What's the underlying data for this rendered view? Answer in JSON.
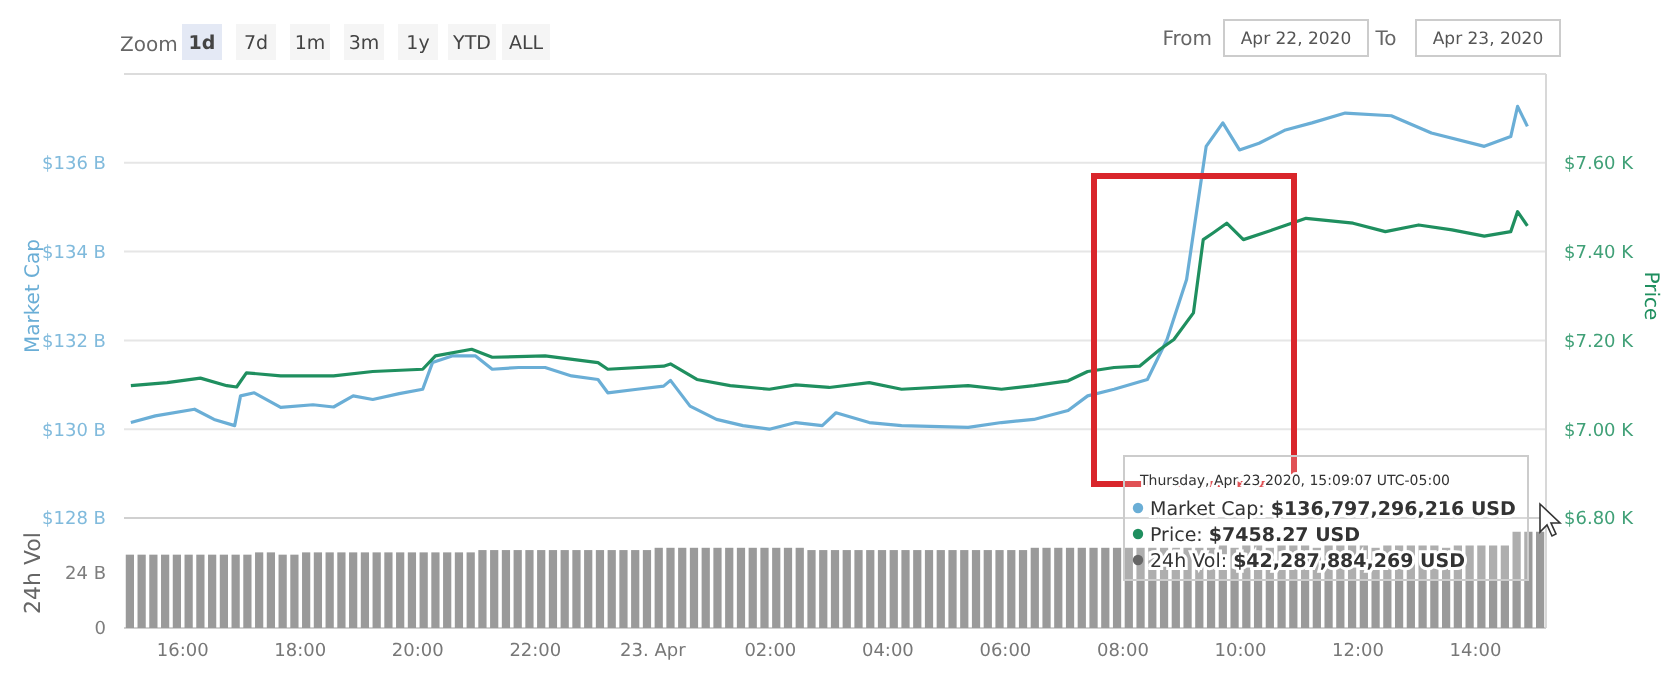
{
  "chart_data": [
    {
      "type": "line",
      "ylabel": "Market Cap",
      "y2label": "Price",
      "tick_labels": "y",
      "xlim": [
        "2020-04-22T15:00",
        "2020-04-23T15:12"
      ],
      "ylim": [
        128,
        138
      ],
      "yticks": [
        {
          "value": 128,
          "label": "$128 B"
        },
        {
          "value": 130,
          "label": "$130 B"
        },
        {
          "value": 132,
          "label": "$132 B"
        },
        {
          "value": 134,
          "label": "$134 B"
        },
        {
          "value": 136,
          "label": "$136 B"
        }
      ],
      "y2lim": [
        6.8,
        7.8
      ],
      "y2ticks": [
        {
          "value": 6.8,
          "label": "$6.80 K"
        },
        {
          "value": 7.0,
          "label": "$7.00 K"
        },
        {
          "value": 7.2,
          "label": "$7.20 K"
        },
        {
          "value": 7.4,
          "label": "$7.40 K"
        },
        {
          "value": 7.6,
          "label": "$7.60 K"
        }
      ],
      "grid": "y",
      "series": [
        {
          "color": "#6aaed6",
          "x": [
            "2020-04-22T15:07",
            "2020-04-22T15:32",
            "2020-04-22T16:12",
            "2020-04-22T16:32",
            "2020-04-22T16:53",
            "2020-04-22T16:59",
            "2020-04-22T17:13",
            "2020-04-22T17:40",
            "2020-04-22T18:13",
            "2020-04-22T18:34",
            "2020-04-22T18:54",
            "2020-04-22T19:14",
            "2020-04-22T19:41",
            "2020-04-22T20:05",
            "2020-04-22T20:15",
            "2020-04-22T20:35",
            "2020-04-22T20:59",
            "2020-04-22T21:16",
            "2020-04-22T21:43",
            "2020-04-22T22:10",
            "2020-04-22T22:37",
            "2020-04-22T23:04",
            "2020-04-22T23:14",
            "2020-04-22T23:44",
            "2020-04-23T00:11",
            "2020-04-23T00:18",
            "2020-04-23T00:38",
            "2020-04-23T01:05",
            "2020-04-23T01:32",
            "2020-04-23T01:59",
            "2020-04-23T02:26",
            "2020-04-23T02:53",
            "2020-04-23T03:07",
            "2020-04-23T03:41",
            "2020-04-23T04:14",
            "2020-04-23T05:22",
            "2020-04-23T05:56",
            "2020-04-23T06:29",
            "2020-04-23T07:04",
            "2020-04-23T07:24",
            "2020-04-23T07:51",
            "2020-04-23T08:25",
            "2020-04-23T08:45",
            "2020-04-23T09:05",
            "2020-04-23T09:19",
            "2020-04-23T09:25",
            "2020-04-23T09:42",
            "2020-04-23T09:59",
            "2020-04-23T10:19",
            "2020-04-23T10:46",
            "2020-04-23T11:13",
            "2020-04-23T11:47",
            "2020-04-23T12:34",
            "2020-04-23T13:15",
            "2020-04-23T14:09",
            "2020-04-23T14:36",
            "2020-04-23T14:43",
            "2020-04-23T14:53"
          ],
          "values": [
            130.15,
            130.3,
            130.45,
            130.22,
            130.08,
            130.75,
            130.82,
            130.49,
            130.55,
            130.5,
            130.75,
            130.67,
            130.8,
            130.9,
            131.5,
            131.65,
            131.65,
            131.35,
            131.39,
            131.39,
            131.2,
            131.12,
            130.82,
            130.9,
            130.97,
            131.1,
            130.52,
            130.22,
            130.08,
            130.0,
            130.15,
            130.08,
            130.37,
            130.15,
            130.08,
            130.04,
            130.15,
            130.22,
            130.42,
            130.75,
            130.9,
            131.12,
            132.02,
            133.37,
            135.47,
            136.37,
            136.9,
            136.29,
            136.44,
            136.74,
            136.9,
            137.12,
            137.06,
            136.67,
            136.37,
            136.59,
            137.27,
            136.82
          ]
        },
        {
          "axis": "y2",
          "color": "#1f8f5f",
          "x": [
            "2020-04-22T15:07",
            "2020-04-22T15:44",
            "2020-04-22T16:18",
            "2020-04-22T16:45",
            "2020-04-22T16:55",
            "2020-04-22T17:05",
            "2020-04-22T17:40",
            "2020-04-22T18:34",
            "2020-04-22T19:14",
            "2020-04-22T20:05",
            "2020-04-22T20:18",
            "2020-04-22T20:55",
            "2020-04-22T21:16",
            "2020-04-22T22:10",
            "2020-04-22T23:04",
            "2020-04-22T23:14",
            "2020-04-23T00:11",
            "2020-04-23T00:18",
            "2020-04-23T00:45",
            "2020-04-23T01:19",
            "2020-04-23T01:59",
            "2020-04-23T02:26",
            "2020-04-23T03:00",
            "2020-04-23T03:41",
            "2020-04-23T04:14",
            "2020-04-23T05:22",
            "2020-04-23T05:56",
            "2020-04-23T06:29",
            "2020-04-23T07:04",
            "2020-04-23T07:24",
            "2020-04-23T07:51",
            "2020-04-23T08:17",
            "2020-04-23T08:38",
            "2020-04-23T08:52",
            "2020-04-23T09:12",
            "2020-04-23T09:22",
            "2020-04-23T09:32",
            "2020-04-23T09:46",
            "2020-04-23T10:03",
            "2020-04-23T10:33",
            "2020-04-23T11:07",
            "2020-04-23T11:55",
            "2020-04-23T12:28",
            "2020-04-23T13:02",
            "2020-04-23T13:36",
            "2020-04-23T14:09",
            "2020-04-23T14:36",
            "2020-04-23T14:43",
            "2020-04-23T14:53"
          ],
          "values": [
            7.098,
            7.105,
            7.115,
            7.098,
            7.095,
            7.127,
            7.12,
            7.12,
            7.13,
            7.135,
            7.165,
            7.18,
            7.162,
            7.165,
            7.15,
            7.135,
            7.142,
            7.147,
            7.112,
            7.098,
            7.09,
            7.1,
            7.094,
            7.105,
            7.09,
            7.098,
            7.09,
            7.098,
            7.109,
            7.13,
            7.139,
            7.142,
            7.18,
            7.202,
            7.262,
            7.427,
            7.442,
            7.464,
            7.427,
            7.449,
            7.475,
            7.464,
            7.445,
            7.46,
            7.449,
            7.435,
            7.445,
            7.49,
            7.458
          ]
        }
      ],
      "annotations": [
        "Zoom",
        "1d",
        "7d",
        "1m",
        "3m",
        "1y",
        "YTD",
        "ALL",
        "From",
        "Apr 22, 2020",
        "To",
        "Apr 23, 2020",
        "Thursday, Apr 23 2020, 15:09:07 UTC-05:00",
        "Market Cap: $136,797,296,216 USD",
        "Price: $7458.27 USD",
        "24h Vol: $42,287,884,269 USD"
      ]
    },
    {
      "type": "bar",
      "ylabel": "24h Vol",
      "color": "#9a9a9a",
      "xlim": [
        "2020-04-22T15:00",
        "2020-04-23T15:12"
      ],
      "xticks": [
        {
          "value": "2020-04-22T16:00",
          "label": "16:00"
        },
        {
          "value": "2020-04-22T18:00",
          "label": "18:00"
        },
        {
          "value": "2020-04-22T20:00",
          "label": "20:00"
        },
        {
          "value": "2020-04-22T22:00",
          "label": "22:00"
        },
        {
          "value": "2020-04-23T00:00",
          "label": "23. Apr"
        },
        {
          "value": "2020-04-23T02:00",
          "label": "02:00"
        },
        {
          "value": "2020-04-23T04:00",
          "label": "04:00"
        },
        {
          "value": "2020-04-23T06:00",
          "label": "06:00"
        },
        {
          "value": "2020-04-23T08:00",
          "label": "08:00"
        },
        {
          "value": "2020-04-23T10:00",
          "label": "10:00"
        },
        {
          "value": "2020-04-23T12:00",
          "label": "12:00"
        },
        {
          "value": "2020-04-23T14:00",
          "label": "14:00"
        }
      ],
      "ylim": [
        0,
        48
      ],
      "yticks": [
        0,
        {
          "value": 24,
          "label": "24 B"
        }
      ],
      "x": [
        "2020-04-22T15:06",
        "2020-04-22T15:18",
        "2020-04-22T15:30",
        "2020-04-22T15:42",
        "2020-04-22T15:54",
        "2020-04-22T16:06",
        "2020-04-22T16:18",
        "2020-04-22T16:30",
        "2020-04-22T16:42",
        "2020-04-22T16:54",
        "2020-04-22T17:06",
        "2020-04-22T17:18",
        "2020-04-22T17:30",
        "2020-04-22T17:42",
        "2020-04-22T17:54",
        "2020-04-22T18:06",
        "2020-04-22T18:18",
        "2020-04-22T18:30",
        "2020-04-22T18:42",
        "2020-04-22T18:54",
        "2020-04-22T19:06",
        "2020-04-22T19:18",
        "2020-04-22T19:30",
        "2020-04-22T19:42",
        "2020-04-22T19:54",
        "2020-04-22T20:06",
        "2020-04-22T20:18",
        "2020-04-22T20:30",
        "2020-04-22T20:42",
        "2020-04-22T20:54",
        "2020-04-22T21:06",
        "2020-04-22T21:18",
        "2020-04-22T21:30",
        "2020-04-22T21:42",
        "2020-04-22T21:54",
        "2020-04-22T22:06",
        "2020-04-22T22:18",
        "2020-04-22T22:30",
        "2020-04-22T22:42",
        "2020-04-22T22:54",
        "2020-04-22T23:06",
        "2020-04-22T23:18",
        "2020-04-22T23:30",
        "2020-04-22T23:42",
        "2020-04-22T23:54",
        "2020-04-23T00:06",
        "2020-04-23T00:18",
        "2020-04-23T00:30",
        "2020-04-23T00:42",
        "2020-04-23T00:54",
        "2020-04-23T01:06",
        "2020-04-23T01:18",
        "2020-04-23T01:30",
        "2020-04-23T01:42",
        "2020-04-23T01:54",
        "2020-04-23T02:06",
        "2020-04-23T02:18",
        "2020-04-23T02:30",
        "2020-04-23T02:42",
        "2020-04-23T02:54",
        "2020-04-23T03:06",
        "2020-04-23T03:18",
        "2020-04-23T03:30",
        "2020-04-23T03:42",
        "2020-04-23T03:54",
        "2020-04-23T04:06",
        "2020-04-23T04:18",
        "2020-04-23T04:30",
        "2020-04-23T04:42",
        "2020-04-23T04:54",
        "2020-04-23T05:06",
        "2020-04-23T05:18",
        "2020-04-23T05:30",
        "2020-04-23T05:42",
        "2020-04-23T05:54",
        "2020-04-23T06:06",
        "2020-04-23T06:18",
        "2020-04-23T06:30",
        "2020-04-23T06:42",
        "2020-04-23T06:54",
        "2020-04-23T07:06",
        "2020-04-23T07:18",
        "2020-04-23T07:30",
        "2020-04-23T07:42",
        "2020-04-23T07:54",
        "2020-04-23T08:06",
        "2020-04-23T08:18",
        "2020-04-23T08:30",
        "2020-04-23T08:42",
        "2020-04-23T08:54",
        "2020-04-23T09:06",
        "2020-04-23T09:18",
        "2020-04-23T09:30",
        "2020-04-23T09:42",
        "2020-04-23T09:54",
        "2020-04-23T10:06",
        "2020-04-23T10:18",
        "2020-04-23T10:30",
        "2020-04-23T10:42",
        "2020-04-23T10:54",
        "2020-04-23T11:06",
        "2020-04-23T11:18",
        "2020-04-23T11:30",
        "2020-04-23T11:42",
        "2020-04-23T11:54",
        "2020-04-23T12:06",
        "2020-04-23T12:18",
        "2020-04-23T12:30",
        "2020-04-23T12:42",
        "2020-04-23T12:54",
        "2020-04-23T13:06",
        "2020-04-23T13:18",
        "2020-04-23T13:30",
        "2020-04-23T13:42",
        "2020-04-23T13:54",
        "2020-04-23T14:06",
        "2020-04-23T14:18",
        "2020-04-23T14:30",
        "2020-04-23T14:42",
        "2020-04-23T14:54",
        "2020-04-23T15:06"
      ],
      "values": [
        32,
        32,
        32,
        32,
        32,
        32,
        32,
        32,
        32,
        32,
        32,
        33,
        33,
        32,
        32,
        33,
        33,
        33,
        33,
        33,
        33,
        33,
        33,
        33,
        33,
        33,
        33,
        33,
        33,
        33,
        34,
        34,
        34,
        34,
        34,
        34,
        34,
        34,
        34,
        34,
        34,
        34,
        34,
        34,
        34,
        35,
        35,
        35,
        35,
        35,
        35,
        35,
        35,
        35,
        35,
        35,
        35,
        35,
        34,
        34,
        34,
        34,
        34,
        34,
        34,
        34,
        34,
        34,
        34,
        34,
        34,
        34,
        34,
        34,
        34,
        34,
        34,
        35,
        35,
        35,
        35,
        35,
        35,
        35,
        35,
        35,
        35,
        35,
        35,
        35,
        35,
        35,
        35,
        36,
        35,
        36,
        36,
        35,
        36,
        36,
        36,
        35,
        36,
        36,
        36,
        36,
        35,
        36,
        36,
        36,
        36,
        36,
        35,
        36,
        36,
        36,
        36,
        36,
        42,
        42,
        42
      ]
    }
  ]
}
